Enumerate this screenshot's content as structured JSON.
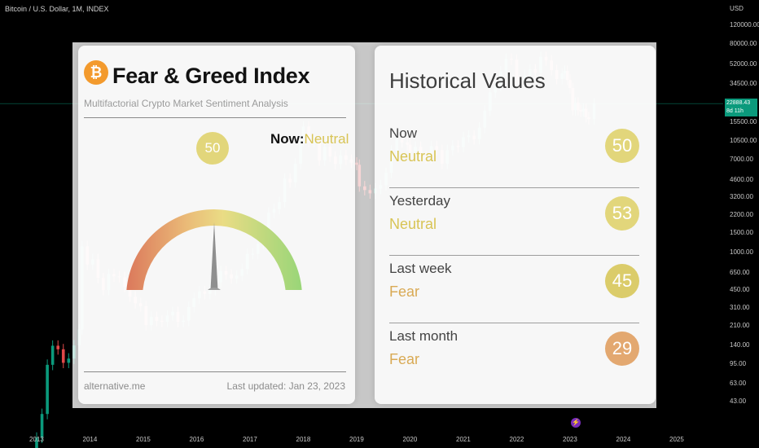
{
  "header": {
    "title": "Bitcoin / U.S. Dollar, 1M, INDEX",
    "currency": "USD"
  },
  "price_tag": {
    "price": "22888.43",
    "countdown": "8d 11h"
  },
  "colors": {
    "up": "#0b9a7c",
    "down": "#e04848",
    "neutral": "#e2d67b",
    "fear": "#e3a870",
    "greed": "#8ed26a"
  },
  "chart_data": {
    "type": "candlestick",
    "title": "Bitcoin / U.S. Dollar, 1M, INDEX",
    "y_scale": "log",
    "ylim": [
      32,
      130000
    ],
    "y_ticks": [
      "120000.00",
      "80000.00",
      "52000.00",
      "34500.00",
      "22888.43",
      "15500.00",
      "10500.00",
      "7000.00",
      "4600.00",
      "3200.00",
      "2200.00",
      "1500.00",
      "1000.00",
      "650.00",
      "450.00",
      "310.00",
      "210.00",
      "140.00",
      "95.00",
      "63.00",
      "43.00"
    ],
    "x_ticks": [
      "2013",
      "2014",
      "2015",
      "2016",
      "2017",
      "2018",
      "2019",
      "2020",
      "2021",
      "2022",
      "2023",
      "2024",
      "2025"
    ],
    "last_price": 22888.43,
    "candles": [
      {
        "year": 2013.0,
        "open": 13,
        "close": 20
      },
      {
        "year": 2013.1,
        "open": 20,
        "close": 33
      },
      {
        "year": 2013.2,
        "open": 33,
        "close": 93
      },
      {
        "year": 2013.3,
        "open": 93,
        "close": 139
      },
      {
        "year": 2013.4,
        "open": 139,
        "close": 129
      },
      {
        "year": 2013.5,
        "open": 129,
        "close": 97
      },
      {
        "year": 2013.6,
        "open": 97,
        "close": 106
      },
      {
        "year": 2013.7,
        "open": 106,
        "close": 140
      },
      {
        "year": 2013.8,
        "open": 140,
        "close": 196
      },
      {
        "year": 2013.85,
        "open": 196,
        "close": 1130
      },
      {
        "year": 2013.95,
        "open": 1130,
        "close": 770
      },
      {
        "year": 2014.05,
        "open": 770,
        "close": 860
      },
      {
        "year": 2014.15,
        "open": 860,
        "close": 580
      },
      {
        "year": 2014.25,
        "open": 580,
        "close": 450
      },
      {
        "year": 2014.35,
        "open": 450,
        "close": 630
      },
      {
        "year": 2014.45,
        "open": 630,
        "close": 600
      },
      {
        "year": 2014.55,
        "open": 600,
        "close": 590
      },
      {
        "year": 2014.65,
        "open": 590,
        "close": 480
      },
      {
        "year": 2014.75,
        "open": 480,
        "close": 390
      },
      {
        "year": 2014.85,
        "open": 390,
        "close": 340
      },
      {
        "year": 2014.95,
        "open": 340,
        "close": 320
      },
      {
        "year": 2015.05,
        "open": 320,
        "close": 215
      },
      {
        "year": 2015.15,
        "open": 215,
        "close": 255
      },
      {
        "year": 2015.25,
        "open": 255,
        "close": 235
      },
      {
        "year": 2015.35,
        "open": 235,
        "close": 230
      },
      {
        "year": 2015.45,
        "open": 230,
        "close": 263
      },
      {
        "year": 2015.55,
        "open": 263,
        "close": 284
      },
      {
        "year": 2015.65,
        "open": 284,
        "close": 230
      },
      {
        "year": 2015.75,
        "open": 230,
        "close": 236
      },
      {
        "year": 2015.85,
        "open": 236,
        "close": 314
      },
      {
        "year": 2015.95,
        "open": 314,
        "close": 378
      },
      {
        "year": 2016.05,
        "open": 378,
        "close": 438
      },
      {
        "year": 2016.15,
        "open": 438,
        "close": 415
      },
      {
        "year": 2016.25,
        "open": 415,
        "close": 450
      },
      {
        "year": 2016.35,
        "open": 450,
        "close": 530
      },
      {
        "year": 2016.45,
        "open": 530,
        "close": 670
      },
      {
        "year": 2016.55,
        "open": 670,
        "close": 625
      },
      {
        "year": 2016.65,
        "open": 625,
        "close": 575
      },
      {
        "year": 2016.75,
        "open": 575,
        "close": 608
      },
      {
        "year": 2016.85,
        "open": 608,
        "close": 700
      },
      {
        "year": 2016.95,
        "open": 700,
        "close": 963
      },
      {
        "year": 2017.05,
        "open": 963,
        "close": 965
      },
      {
        "year": 2017.15,
        "open": 965,
        "close": 1190
      },
      {
        "year": 2017.25,
        "open": 1190,
        "close": 1350
      },
      {
        "year": 2017.35,
        "open": 1350,
        "close": 2300
      },
      {
        "year": 2017.45,
        "open": 2300,
        "close": 2480
      },
      {
        "year": 2017.55,
        "open": 2480,
        "close": 2870
      },
      {
        "year": 2017.65,
        "open": 2870,
        "close": 4700
      },
      {
        "year": 2017.75,
        "open": 4700,
        "close": 4340
      },
      {
        "year": 2017.85,
        "open": 4340,
        "close": 6450
      },
      {
        "year": 2017.95,
        "open": 6450,
        "close": 10400
      },
      {
        "year": 2018.0,
        "open": 10400,
        "close": 14100
      },
      {
        "year": 2018.1,
        "open": 14100,
        "close": 10200
      },
      {
        "year": 2018.2,
        "open": 10200,
        "close": 10300
      },
      {
        "year": 2018.3,
        "open": 10300,
        "close": 6900
      },
      {
        "year": 2018.4,
        "open": 6900,
        "close": 9200
      },
      {
        "year": 2018.5,
        "open": 9200,
        "close": 7500
      },
      {
        "year": 2018.6,
        "open": 7500,
        "close": 6400
      },
      {
        "year": 2018.7,
        "open": 6400,
        "close": 7700
      },
      {
        "year": 2018.8,
        "open": 7700,
        "close": 7000
      },
      {
        "year": 2018.9,
        "open": 7000,
        "close": 6600
      },
      {
        "year": 2019.0,
        "open": 6600,
        "close": 6300
      },
      {
        "year": 2019.05,
        "open": 6300,
        "close": 4000
      },
      {
        "year": 2019.15,
        "open": 4000,
        "close": 3700
      },
      {
        "year": 2019.25,
        "open": 3700,
        "close": 3450
      },
      {
        "year": 2019.35,
        "open": 3450,
        "close": 3820
      },
      {
        "year": 2019.45,
        "open": 3820,
        "close": 4100
      },
      {
        "year": 2019.55,
        "open": 4100,
        "close": 5300
      },
      {
        "year": 2019.65,
        "open": 5300,
        "close": 8500
      },
      {
        "year": 2019.75,
        "open": 8500,
        "close": 10800
      },
      {
        "year": 2019.85,
        "open": 10800,
        "close": 10100
      },
      {
        "year": 2019.95,
        "open": 10100,
        "close": 9600
      },
      {
        "year": 2020.0,
        "open": 9600,
        "close": 8300
      },
      {
        "year": 2020.1,
        "open": 8300,
        "close": 9200
      },
      {
        "year": 2020.2,
        "open": 9200,
        "close": 7500
      },
      {
        "year": 2020.3,
        "open": 7500,
        "close": 7200
      },
      {
        "year": 2020.4,
        "open": 7200,
        "close": 9350
      },
      {
        "year": 2020.5,
        "open": 9350,
        "close": 8600
      },
      {
        "year": 2020.6,
        "open": 8600,
        "close": 6450
      },
      {
        "year": 2020.7,
        "open": 6450,
        "close": 8600
      },
      {
        "year": 2020.8,
        "open": 8600,
        "close": 9450
      },
      {
        "year": 2020.9,
        "open": 9450,
        "close": 9150
      },
      {
        "year": 2021.0,
        "open": 9150,
        "close": 11300
      },
      {
        "year": 2021.1,
        "open": 11300,
        "close": 11650
      },
      {
        "year": 2021.2,
        "open": 11650,
        "close": 10800
      },
      {
        "year": 2021.3,
        "open": 10800,
        "close": 13800
      },
      {
        "year": 2021.4,
        "open": 13800,
        "close": 19700
      },
      {
        "year": 2021.5,
        "open": 19700,
        "close": 29000
      },
      {
        "year": 2021.6,
        "open": 29000,
        "close": 33100
      },
      {
        "year": 2021.7,
        "open": 33100,
        "close": 45200
      },
      {
        "year": 2021.8,
        "open": 45200,
        "close": 58800
      },
      {
        "year": 2021.9,
        "open": 58800,
        "close": 57700
      },
      {
        "year": 2022.0,
        "open": 57700,
        "close": 37300
      },
      {
        "year": 2022.05,
        "open": 37300,
        "close": 35000
      },
      {
        "year": 2022.15,
        "open": 35000,
        "close": 41500
      },
      {
        "year": 2022.25,
        "open": 41500,
        "close": 47100
      },
      {
        "year": 2022.35,
        "open": 47100,
        "close": 43800
      },
      {
        "year": 2022.45,
        "open": 43800,
        "close": 61300
      },
      {
        "year": 2022.55,
        "open": 61300,
        "close": 57000
      },
      {
        "year": 2022.65,
        "open": 57000,
        "close": 46300
      },
      {
        "year": 2022.75,
        "open": 46300,
        "close": 38500
      },
      {
        "year": 2022.85,
        "open": 38500,
        "close": 43200
      },
      {
        "year": 2022.9,
        "open": 43200,
        "close": 45600
      },
      {
        "year": 2022.95,
        "open": 45600,
        "close": 37700
      },
      {
        "year": 2023.0,
        "open": 37700,
        "close": 31800
      },
      {
        "year": 2023.05,
        "open": 31800,
        "close": 19900
      },
      {
        "year": 2023.1,
        "open": 19900,
        "close": 23300
      },
      {
        "year": 2023.15,
        "open": 23300,
        "close": 20000
      },
      {
        "year": 2023.2,
        "open": 20000,
        "close": 19400
      },
      {
        "year": 2023.25,
        "open": 19400,
        "close": 20500
      },
      {
        "year": 2023.3,
        "open": 20500,
        "close": 17200
      },
      {
        "year": 2023.35,
        "open": 17200,
        "close": 16500
      },
      {
        "year": 2023.45,
        "open": 16500,
        "close": 22888
      }
    ]
  },
  "fear_greed": {
    "title": "Fear & Greed Index",
    "subtitle": "Multifactorial Crypto Market Sentiment Analysis",
    "now_value": "50",
    "now_label": "Now:",
    "now_class": "Neutral",
    "gauge_level": 50,
    "site": "alternative.me",
    "updated": "Last updated: Jan 23, 2023"
  },
  "historical": {
    "title": "Historical Values",
    "rows": [
      {
        "label": "Now",
        "classification": "Neutral",
        "value": "50",
        "color": "#e2d67b"
      },
      {
        "label": "Yesterday",
        "classification": "Neutral",
        "value": "53",
        "color": "#e2d67b"
      },
      {
        "label": "Last week",
        "classification": "Fear",
        "value": "45",
        "color": "#dbcc6a"
      },
      {
        "label": "Last month",
        "classification": "Fear",
        "value": "29",
        "color": "#e3a870"
      }
    ]
  }
}
